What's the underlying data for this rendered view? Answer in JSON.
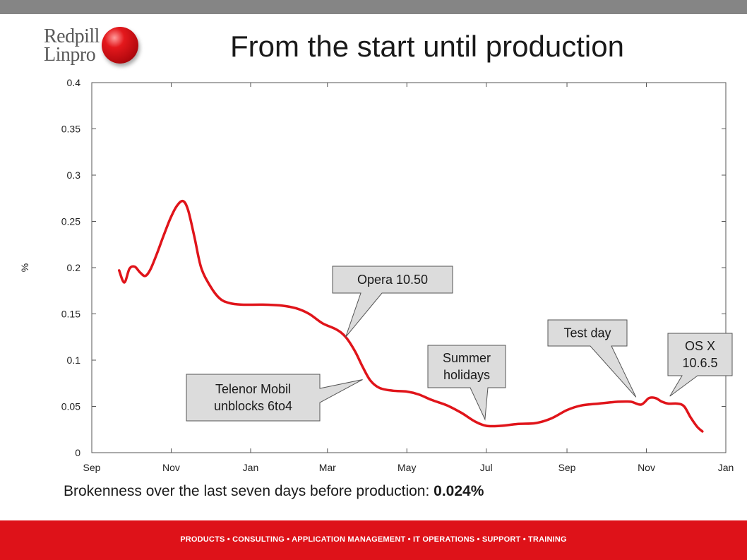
{
  "header": {
    "logo_line1": "Redpill",
    "logo_line2": "Linpro",
    "title": "From the start until production"
  },
  "caption": {
    "text": "Brokenness over the last seven days before production: ",
    "value": "0.024%"
  },
  "footer": {
    "text": "PRODUCTS • CONSULTING • APPLICATION MANAGEMENT • IT OPERATIONS • SUPPORT • TRAINING"
  },
  "colors": {
    "line": "#e0141a",
    "footer": "#de1219",
    "top_bar": "#858585",
    "callout_fill": "#dcdcdc"
  },
  "chart_data": {
    "type": "line",
    "title": "",
    "xlabel": "",
    "ylabel": "%",
    "x_axis": {
      "min": "2009-09-01",
      "max": "2011-01-01",
      "ticks": [
        {
          "date": "2009-09-01",
          "label": "Sep"
        },
        {
          "date": "2009-11-01",
          "label": "Nov"
        },
        {
          "date": "2010-01-01",
          "label": "Jan"
        },
        {
          "date": "2010-03-01",
          "label": "Mar"
        },
        {
          "date": "2010-05-01",
          "label": "May"
        },
        {
          "date": "2010-07-01",
          "label": "Jul"
        },
        {
          "date": "2010-09-01",
          "label": "Sep"
        },
        {
          "date": "2010-11-01",
          "label": "Nov"
        },
        {
          "date": "2011-01-01",
          "label": "Jan"
        }
      ]
    },
    "ylim": [
      0,
      0.4
    ],
    "y_ticks": [
      {
        "value": 0,
        "label": "0"
      },
      {
        "value": 0.05,
        "label": "0.05"
      },
      {
        "value": 0.1,
        "label": "0.1"
      },
      {
        "value": 0.15,
        "label": "0.15"
      },
      {
        "value": 0.2,
        "label": "0.2"
      },
      {
        "value": 0.25,
        "label": "0.25"
      },
      {
        "value": 0.3,
        "label": "0.3"
      },
      {
        "value": 0.35,
        "label": "0.35"
      },
      {
        "value": 0.4,
        "label": "0.4"
      }
    ],
    "grid": false,
    "series": [
      {
        "points": [
          {
            "x": "2009-09-22",
            "y": 0.197
          },
          {
            "x": "2009-09-26",
            "y": 0.184
          },
          {
            "x": "2009-09-30",
            "y": 0.199
          },
          {
            "x": "2009-10-04",
            "y": 0.201
          },
          {
            "x": "2009-10-08",
            "y": 0.195
          },
          {
            "x": "2009-10-12",
            "y": 0.191
          },
          {
            "x": "2009-10-16",
            "y": 0.198
          },
          {
            "x": "2009-10-21",
            "y": 0.215
          },
          {
            "x": "2009-10-26",
            "y": 0.234
          },
          {
            "x": "2009-10-31",
            "y": 0.252
          },
          {
            "x": "2009-11-05",
            "y": 0.266
          },
          {
            "x": "2009-11-10",
            "y": 0.272
          },
          {
            "x": "2009-11-14",
            "y": 0.262
          },
          {
            "x": "2009-11-19",
            "y": 0.232
          },
          {
            "x": "2009-11-24",
            "y": 0.2
          },
          {
            "x": "2009-12-01",
            "y": 0.18
          },
          {
            "x": "2009-12-08",
            "y": 0.167
          },
          {
            "x": "2009-12-15",
            "y": 0.162
          },
          {
            "x": "2009-12-25",
            "y": 0.16
          },
          {
            "x": "2010-01-10",
            "y": 0.16
          },
          {
            "x": "2010-01-25",
            "y": 0.159
          },
          {
            "x": "2010-02-05",
            "y": 0.156
          },
          {
            "x": "2010-02-15",
            "y": 0.15
          },
          {
            "x": "2010-02-25",
            "y": 0.14
          },
          {
            "x": "2010-03-08",
            "y": 0.133
          },
          {
            "x": "2010-03-15",
            "y": 0.125
          },
          {
            "x": "2010-03-22",
            "y": 0.11
          },
          {
            "x": "2010-03-28",
            "y": 0.093
          },
          {
            "x": "2010-04-03",
            "y": 0.078
          },
          {
            "x": "2010-04-10",
            "y": 0.07
          },
          {
            "x": "2010-04-20",
            "y": 0.067
          },
          {
            "x": "2010-05-01",
            "y": 0.066
          },
          {
            "x": "2010-05-10",
            "y": 0.063
          },
          {
            "x": "2010-05-20",
            "y": 0.057
          },
          {
            "x": "2010-06-01",
            "y": 0.051
          },
          {
            "x": "2010-06-12",
            "y": 0.043
          },
          {
            "x": "2010-06-22",
            "y": 0.034
          },
          {
            "x": "2010-07-01",
            "y": 0.029
          },
          {
            "x": "2010-07-12",
            "y": 0.029
          },
          {
            "x": "2010-07-25",
            "y": 0.031
          },
          {
            "x": "2010-08-08",
            "y": 0.032
          },
          {
            "x": "2010-08-20",
            "y": 0.037
          },
          {
            "x": "2010-09-01",
            "y": 0.046
          },
          {
            "x": "2010-09-12",
            "y": 0.051
          },
          {
            "x": "2010-09-25",
            "y": 0.053
          },
          {
            "x": "2010-10-10",
            "y": 0.055
          },
          {
            "x": "2010-10-20",
            "y": 0.055
          },
          {
            "x": "2010-10-28",
            "y": 0.052
          },
          {
            "x": "2010-11-03",
            "y": 0.059
          },
          {
            "x": "2010-11-08",
            "y": 0.059
          },
          {
            "x": "2010-11-13",
            "y": 0.055
          },
          {
            "x": "2010-11-18",
            "y": 0.053
          },
          {
            "x": "2010-11-25",
            "y": 0.053
          },
          {
            "x": "2010-11-30",
            "y": 0.05
          },
          {
            "x": "2010-12-05",
            "y": 0.038
          },
          {
            "x": "2010-12-10",
            "y": 0.028
          },
          {
            "x": "2010-12-14",
            "y": 0.023
          }
        ]
      }
    ],
    "annotations": [
      {
        "id": "opera",
        "lines": [
          "Opera 10.50"
        ],
        "target": {
          "x": "2010-03-15",
          "y": 0.125
        },
        "placement": "upper-right"
      },
      {
        "id": "telenor",
        "lines": [
          "Telenor Mobil",
          "unblocks 6to4"
        ],
        "target": {
          "x": "2010-03-28",
          "y": 0.079
        },
        "placement": "lower-left"
      },
      {
        "id": "summer",
        "lines": [
          "Summer",
          "holidays"
        ],
        "target": {
          "x": "2010-06-30",
          "y": 0.036
        },
        "placement": "above"
      },
      {
        "id": "testday",
        "lines": [
          "Test day"
        ],
        "target": {
          "x": "2010-10-24",
          "y": 0.06
        },
        "placement": "upper-left"
      },
      {
        "id": "osx",
        "lines": [
          "OS X",
          "10.6.5"
        ],
        "target": {
          "x": "2010-11-19",
          "y": 0.061
        },
        "placement": "upper-right"
      }
    ]
  }
}
